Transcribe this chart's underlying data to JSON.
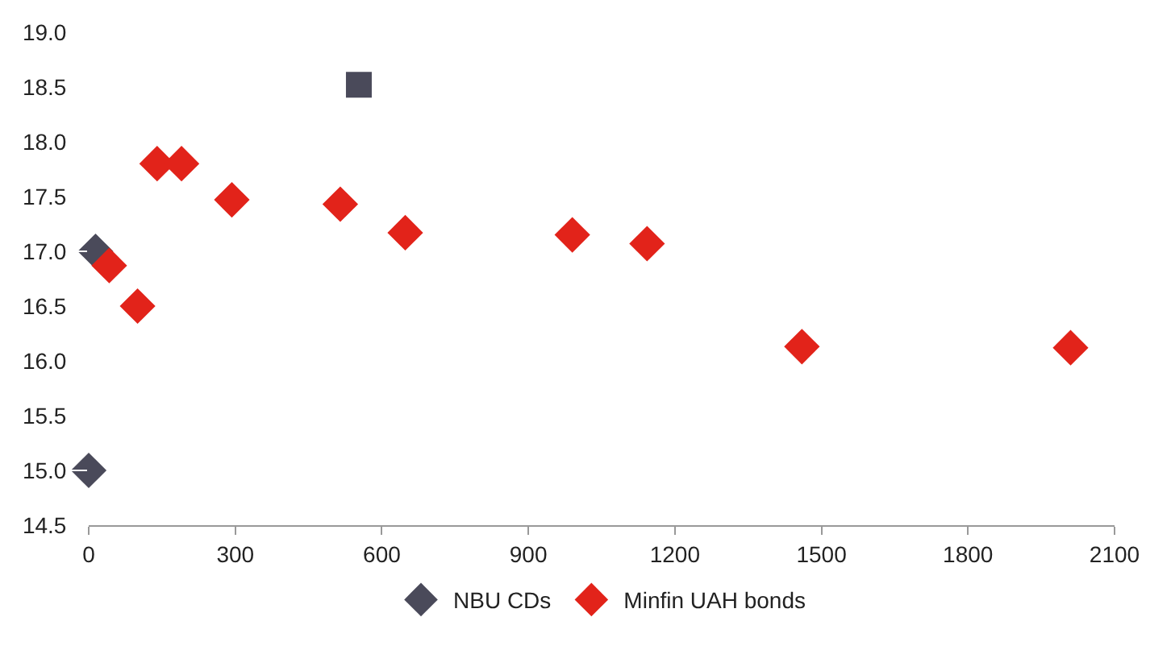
{
  "chart_data": {
    "type": "scatter",
    "xlim": [
      0,
      2100
    ],
    "xticks": [
      0,
      300,
      600,
      900,
      1200,
      1500,
      1800,
      2100
    ],
    "ylim": [
      14.5,
      19.0
    ],
    "yticks": [
      {
        "value": 14.5,
        "label": "14.5"
      },
      {
        "value": 15.0,
        "label": "15.0"
      },
      {
        "value": 15.5,
        "label": "15.5"
      },
      {
        "value": 16.0,
        "label": "16.0"
      },
      {
        "value": 16.5,
        "label": "16.5"
      },
      {
        "value": 17.0,
        "label": "17.0"
      },
      {
        "value": 17.5,
        "label": "17.5"
      },
      {
        "value": 18.0,
        "label": "18.0"
      },
      {
        "value": 18.5,
        "label": "18.5"
      },
      {
        "value": 19.0,
        "label": "19.0"
      }
    ],
    "grid": false,
    "legend": "bottom",
    "series": [
      {
        "name": "NBU CDs",
        "color": "#4a4a5a",
        "marker": "diamond",
        "x": [
          14,
          0
        ],
        "values": [
          17.0,
          15.0
        ]
      },
      {
        "name": "Minfin UAH bonds",
        "color": "#e2231a",
        "marker": "diamond",
        "x": [
          42,
          100,
          140,
          190,
          293,
          515,
          648,
          990,
          1143,
          1460,
          2010
        ],
        "values": [
          16.87,
          16.5,
          17.8,
          17.8,
          17.47,
          17.43,
          17.17,
          17.15,
          17.07,
          16.13,
          16.12
        ]
      },
      {
        "color": "#4a4a5a",
        "marker": "square",
        "x": [
          553
        ],
        "values": [
          18.52
        ]
      }
    ]
  }
}
